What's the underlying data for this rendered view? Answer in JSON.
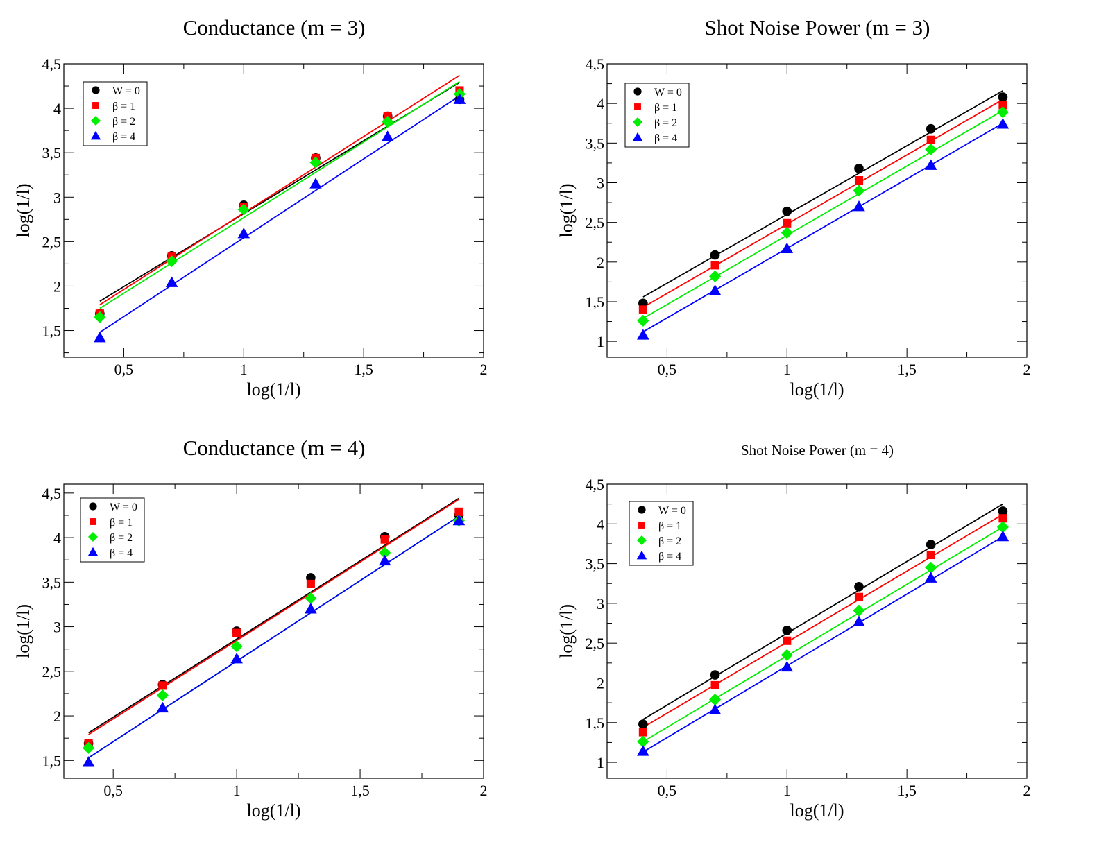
{
  "chart_data": [
    {
      "type": "scatter",
      "title": "Conductance (m = 3)",
      "xlabel": "log(1/l)",
      "ylabel": "log(1/l)",
      "xlim": [
        0.25,
        2
      ],
      "ylim": [
        1.2,
        4.5
      ],
      "xticks": [
        {
          "v": 0.5,
          "label": "0,5"
        },
        {
          "v": 1,
          "label": "1"
        },
        {
          "v": 1.5,
          "label": "1,5"
        },
        {
          "v": 2,
          "label": "2"
        }
      ],
      "yticks": [
        {
          "v": 1.5,
          "label": "1,5"
        },
        {
          "v": 2,
          "label": "2"
        },
        {
          "v": 2.5,
          "label": "2,5"
        },
        {
          "v": 3,
          "label": "3"
        },
        {
          "v": 3.5,
          "label": "3,5"
        },
        {
          "v": 4,
          "label": "4"
        },
        {
          "v": 4.5,
          "label": "4,5"
        }
      ],
      "legend_position": "top-left",
      "grid": false,
      "x": [
        0.4,
        0.7,
        1.0,
        1.3,
        1.6,
        1.9
      ],
      "series": [
        {
          "name": "W = 0",
          "marker": "circle",
          "color": "#000000",
          "values": [
            1.69,
            2.34,
            2.91,
            3.44,
            3.91,
            4.1
          ],
          "fit": [
            1.83,
            4.29
          ]
        },
        {
          "name": "β = 1",
          "marker": "square",
          "color": "#ff0000",
          "values": [
            1.69,
            2.33,
            2.89,
            3.44,
            3.91,
            4.2
          ],
          "fit": [
            1.79,
            4.37
          ]
        },
        {
          "name": "β = 2",
          "marker": "diamond",
          "color": "#00ee00",
          "values": [
            1.65,
            2.28,
            2.86,
            3.39,
            3.85,
            4.16
          ],
          "fit": [
            1.75,
            4.3
          ]
        },
        {
          "name": "β = 4",
          "marker": "triangle",
          "color": "#0000ff",
          "values": [
            1.42,
            2.04,
            2.59,
            3.15,
            3.68,
            4.1
          ],
          "fit": [
            1.48,
            4.14
          ]
        }
      ]
    },
    {
      "type": "scatter",
      "title": "Shot Noise Power (m = 3)",
      "xlabel": "log(1/l)",
      "ylabel": "log(1/l)",
      "xlim": [
        0.25,
        2
      ],
      "ylim": [
        0.8,
        4.5
      ],
      "xticks": [
        {
          "v": 0.5,
          "label": "0,5"
        },
        {
          "v": 1,
          "label": "1"
        },
        {
          "v": 1.5,
          "label": "1,5"
        },
        {
          "v": 2,
          "label": "2"
        }
      ],
      "yticks": [
        {
          "v": 1,
          "label": "1"
        },
        {
          "v": 1.5,
          "label": "1,5"
        },
        {
          "v": 2,
          "label": "2"
        },
        {
          "v": 2.5,
          "label": "2,5"
        },
        {
          "v": 3,
          "label": "3"
        },
        {
          "v": 3.5,
          "label": "3,5"
        },
        {
          "v": 4,
          "label": "4"
        },
        {
          "v": 4.5,
          "label": "4,5"
        }
      ],
      "legend_position": "top-left",
      "grid": false,
      "x": [
        0.4,
        0.7,
        1.0,
        1.3,
        1.6,
        1.9
      ],
      "series": [
        {
          "name": "W = 0",
          "marker": "circle",
          "color": "#000000",
          "values": [
            1.48,
            2.09,
            2.64,
            3.18,
            3.68,
            4.08
          ],
          "fit": [
            1.56,
            4.16
          ]
        },
        {
          "name": "β = 1",
          "marker": "square",
          "color": "#ff0000",
          "values": [
            1.4,
            1.96,
            2.49,
            3.03,
            3.54,
            3.98
          ],
          "fit": [
            1.43,
            4.05
          ]
        },
        {
          "name": "β = 2",
          "marker": "diamond",
          "color": "#00ee00",
          "values": [
            1.26,
            1.82,
            2.37,
            2.9,
            3.42,
            3.89
          ],
          "fit": [
            1.29,
            3.91
          ]
        },
        {
          "name": "β = 4",
          "marker": "triangle",
          "color": "#0000ff",
          "values": [
            1.08,
            1.64,
            2.17,
            2.7,
            3.22,
            3.74
          ],
          "fit": [
            1.12,
            3.75
          ]
        }
      ]
    },
    {
      "type": "scatter",
      "title": "Conductance (m = 4)",
      "xlabel": "log(1/l)",
      "ylabel": "log(1/l)",
      "xlim": [
        0.3,
        2
      ],
      "ylim": [
        1.3,
        4.6
      ],
      "xticks": [
        {
          "v": 0.5,
          "label": "0,5"
        },
        {
          "v": 1,
          "label": "1"
        },
        {
          "v": 1.5,
          "label": "1,5"
        },
        {
          "v": 2,
          "label": "2"
        }
      ],
      "yticks": [
        {
          "v": 1.5,
          "label": "1,5"
        },
        {
          "v": 2,
          "label": "2"
        },
        {
          "v": 2.5,
          "label": "2,5"
        },
        {
          "v": 3,
          "label": "3"
        },
        {
          "v": 3.5,
          "label": "3,5"
        },
        {
          "v": 4,
          "label": "4"
        },
        {
          "v": 4.5,
          "label": "4,5"
        }
      ],
      "legend_position": "top-left",
      "grid": false,
      "x": [
        0.4,
        0.7,
        1.0,
        1.3,
        1.6,
        1.9
      ],
      "series": [
        {
          "name": "W = 0",
          "marker": "circle",
          "color": "#000000",
          "values": [
            1.69,
            2.35,
            2.95,
            3.55,
            4.01,
            4.25
          ],
          "fit": [
            1.81,
            4.44
          ]
        },
        {
          "name": "β = 1",
          "marker": "square",
          "color": "#ff0000",
          "values": [
            1.69,
            2.34,
            2.93,
            3.48,
            3.98,
            4.29
          ],
          "fit": [
            1.79,
            4.43
          ]
        },
        {
          "name": "β = 2",
          "marker": "diamond",
          "color": "#00ee00",
          "values": [
            1.64,
            2.23,
            2.78,
            3.32,
            3.83,
            4.19
          ],
          "fit": [
            1.53,
            4.24
          ]
        },
        {
          "name": "β = 4",
          "marker": "triangle",
          "color": "#0000ff",
          "values": [
            1.48,
            2.09,
            2.64,
            3.2,
            3.74,
            4.19
          ],
          "fit": [
            1.53,
            4.24
          ]
        }
      ]
    },
    {
      "type": "scatter",
      "title": "Shot Noise Power (m = 4)",
      "xlabel": "log(1/l)",
      "ylabel": "log(1/l)",
      "xlim": [
        0.25,
        2
      ],
      "ylim": [
        0.8,
        4.5
      ],
      "xticks": [
        {
          "v": 0.5,
          "label": "0,5"
        },
        {
          "v": 1,
          "label": "1"
        },
        {
          "v": 1.5,
          "label": "1,5"
        },
        {
          "v": 2,
          "label": "2"
        }
      ],
      "yticks": [
        {
          "v": 1,
          "label": "1"
        },
        {
          "v": 1.5,
          "label": "1,5"
        },
        {
          "v": 2,
          "label": "2"
        },
        {
          "v": 2.5,
          "label": "2,5"
        },
        {
          "v": 3,
          "label": "3"
        },
        {
          "v": 3.5,
          "label": "3,5"
        },
        {
          "v": 4,
          "label": "4"
        },
        {
          "v": 4.5,
          "label": "4,5"
        }
      ],
      "legend_position": "top-left",
      "grid": false,
      "x": [
        0.4,
        0.7,
        1.0,
        1.3,
        1.6,
        1.9
      ],
      "series": [
        {
          "name": "W = 0",
          "marker": "circle",
          "color": "#000000",
          "values": [
            1.48,
            2.1,
            2.66,
            3.21,
            3.74,
            4.16
          ],
          "fit": [
            1.54,
            4.25
          ]
        },
        {
          "name": "β = 1",
          "marker": "square",
          "color": "#ff0000",
          "values": [
            1.38,
            1.97,
            2.53,
            3.08,
            3.61,
            4.07
          ],
          "fit": [
            1.44,
            4.12
          ]
        },
        {
          "name": "β = 2",
          "marker": "diamond",
          "color": "#00ee00",
          "values": [
            1.26,
            1.79,
            2.35,
            2.91,
            3.45,
            3.96
          ],
          "fit": [
            1.26,
            3.96
          ]
        },
        {
          "name": "β = 4",
          "marker": "triangle",
          "color": "#0000ff",
          "values": [
            1.14,
            1.66,
            2.2,
            2.77,
            3.32,
            3.84
          ],
          "fit": [
            1.13,
            3.84
          ]
        }
      ]
    }
  ]
}
